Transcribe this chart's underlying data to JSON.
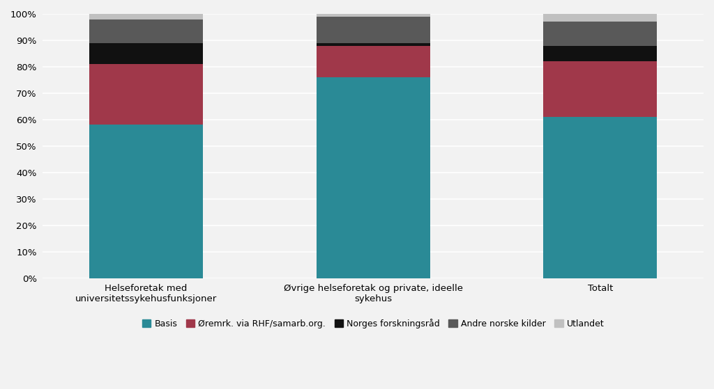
{
  "categories": [
    "Helseforetak med\nuniversitetssykehusfunksjoner",
    "Øvrige helseforetak og private, ideelle\nsykehus",
    "Totalt"
  ],
  "series": [
    {
      "label": "Basis",
      "color": "#2a8a96",
      "values": [
        58,
        76,
        61
      ]
    },
    {
      "label": "Øremrk. via RHF/samarb.org.",
      "color": "#a0384a",
      "values": [
        23,
        12,
        21
      ]
    },
    {
      "label": "Norges forskningsråd",
      "color": "#111111",
      "values": [
        8,
        1,
        6
      ]
    },
    {
      "label": "Andre norske kilder",
      "color": "#595959",
      "values": [
        9,
        10,
        9
      ]
    },
    {
      "label": "Utlandet",
      "color": "#c0c0c0",
      "values": [
        2,
        1,
        3
      ]
    }
  ],
  "ylim": [
    0,
    100
  ],
  "ytick_labels": [
    "0%",
    "10%",
    "20%",
    "30%",
    "40%",
    "50%",
    "60%",
    "70%",
    "80%",
    "90%",
    "100%"
  ],
  "ytick_values": [
    0,
    10,
    20,
    30,
    40,
    50,
    60,
    70,
    80,
    90,
    100
  ],
  "bar_width": 0.55,
  "background_color": "#f2f2f2",
  "legend_fontsize": 9,
  "axis_fontsize": 9.5,
  "grid_color": "#ffffff",
  "bar_positions": [
    0,
    1.1,
    2.2
  ]
}
